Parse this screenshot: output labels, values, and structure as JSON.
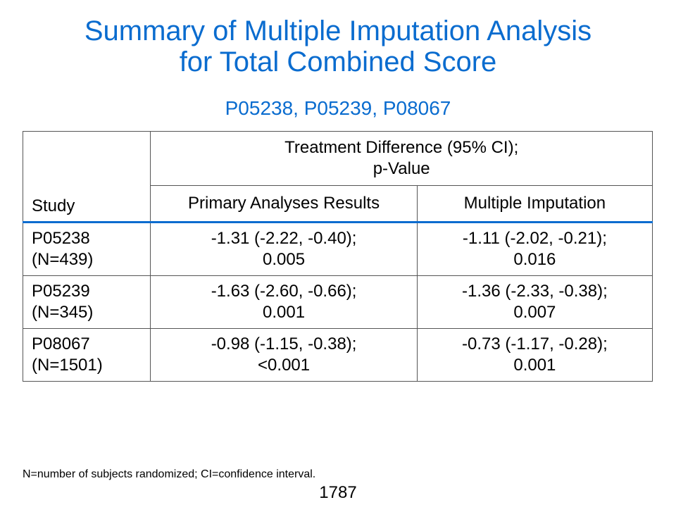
{
  "title": {
    "line1": "Summary of Multiple Imputation Analysis",
    "line2": "for Total Combined Score"
  },
  "subtitle": "P05238, P05239, P08067",
  "table": {
    "header_study": "Study",
    "header_group_line1": "Treatment Difference (95% CI);",
    "header_group_line2": "p-Value",
    "header_primary": "Primary Analyses Results",
    "header_mi": "Multiple Imputation",
    "rows": [
      {
        "study_id": "P05238",
        "study_n": "(N=439)",
        "primary_ci": "-1.31 (-2.22, -0.40);",
        "primary_p": "0.005",
        "mi_ci": "-1.11 (-2.02, -0.21);",
        "mi_p": "0.016"
      },
      {
        "study_id": "P05239",
        "study_n": "(N=345)",
        "primary_ci": "-1.63 (-2.60, -0.66);",
        "primary_p": "0.001",
        "mi_ci": "-1.36 (-2.33, -0.38);",
        "mi_p": "0.007"
      },
      {
        "study_id": "P08067",
        "study_n": "(N=1501)",
        "primary_ci": "-0.98 (-1.15, -0.38);",
        "primary_p": "<0.001",
        "mi_ci": "-0.73 (-1.17, -0.28);",
        "mi_p": "0.001"
      }
    ]
  },
  "footnote": "N=number of subjects randomized; CI=confidence interval.",
  "page_number": "1787",
  "colors": {
    "accent": "#0a6ccf",
    "text": "#000000",
    "border": "#555555"
  }
}
